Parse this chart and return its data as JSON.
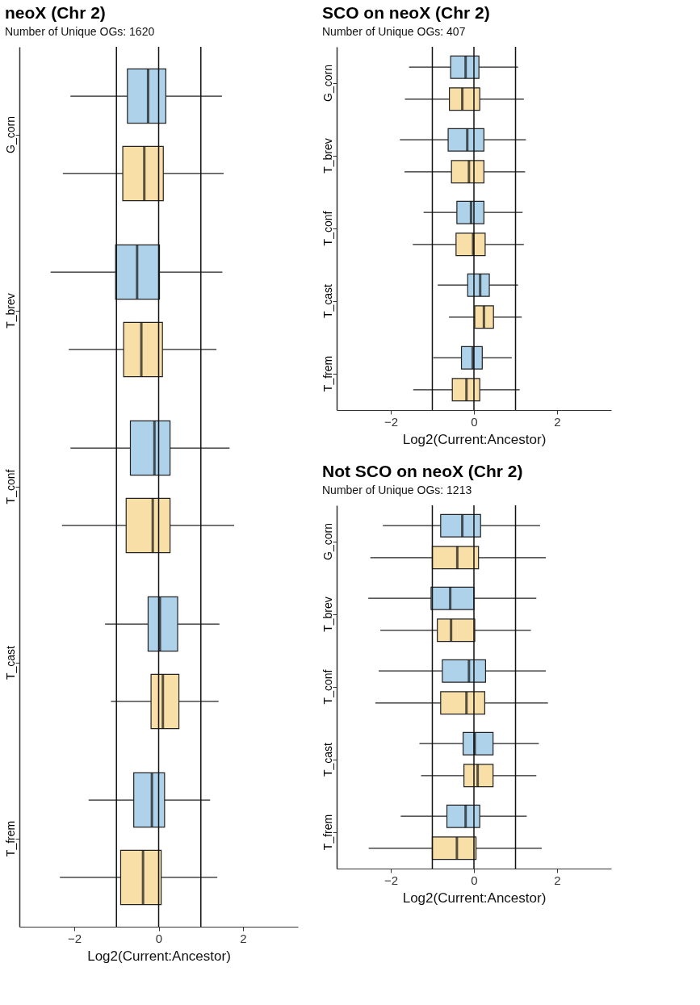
{
  "chart_data": [
    {
      "type": "box",
      "orientation": "horizontal",
      "title": "neoX (Chr 2)",
      "subtitle": "Number of Unique OGs: 1620",
      "xlabel": "Log2(Current:Ancestor)",
      "categories": [
        "G_corn",
        "T_brev",
        "T_conf",
        "T_cast",
        "T_frem"
      ],
      "xlim": [
        -3.3,
        3.3
      ],
      "xticks": [
        -2,
        0,
        2
      ],
      "ref_lines": [
        {
          "axis": "x",
          "value": -1
        },
        {
          "axis": "x",
          "value": 0
        },
        {
          "axis": "x",
          "value": 1
        }
      ],
      "series": [
        {
          "color": "#aed2ea",
          "boxes": [
            {
              "low": -2.09,
              "q1": -0.74,
              "median": -0.25,
              "q3": 0.17,
              "high": 1.5
            },
            {
              "low": -2.56,
              "q1": -1.02,
              "median": -0.51,
              "q3": 0.02,
              "high": 1.51
            },
            {
              "low": -2.09,
              "q1": -0.67,
              "median": -0.1,
              "q3": 0.27,
              "high": 1.68
            },
            {
              "low": -1.27,
              "q1": -0.25,
              "median": 0.03,
              "q3": 0.45,
              "high": 1.44
            },
            {
              "low": -1.66,
              "q1": -0.59,
              "median": -0.16,
              "q3": 0.14,
              "high": 1.22
            }
          ]
        },
        {
          "color": "#f8dfa8",
          "boxes": [
            {
              "low": -2.27,
              "q1": -0.85,
              "median": -0.34,
              "q3": 0.11,
              "high": 1.54
            },
            {
              "low": -2.13,
              "q1": -0.83,
              "median": -0.41,
              "q3": 0.09,
              "high": 1.37
            },
            {
              "low": -2.29,
              "q1": -0.77,
              "median": -0.14,
              "q3": 0.27,
              "high": 1.79
            },
            {
              "low": -1.13,
              "q1": -0.18,
              "median": 0.1,
              "q3": 0.48,
              "high": 1.42
            },
            {
              "low": -2.34,
              "q1": -0.9,
              "median": -0.37,
              "q3": 0.06,
              "high": 1.39
            }
          ]
        }
      ]
    },
    {
      "type": "box",
      "orientation": "horizontal",
      "title": "SCO on neoX (Chr 2)",
      "subtitle": "Number of Unique OGs: 407",
      "xlabel": "Log2(Current:Ancestor)",
      "categories": [
        "G_corn",
        "T_brev",
        "T_conf",
        "T_cast",
        "T_frem"
      ],
      "xlim": [
        -3.3,
        3.3
      ],
      "xticks": [
        -2,
        0,
        2
      ],
      "ref_lines": [
        {
          "axis": "x",
          "value": -1
        },
        {
          "axis": "x",
          "value": 0
        },
        {
          "axis": "x",
          "value": 1
        }
      ],
      "series": [
        {
          "color": "#aed2ea",
          "boxes": [
            {
              "low": -1.56,
              "q1": -0.56,
              "median": -0.2,
              "q3": 0.12,
              "high": 1.06
            },
            {
              "low": -1.78,
              "q1": -0.62,
              "median": -0.16,
              "q3": 0.24,
              "high": 1.25
            },
            {
              "low": -1.21,
              "q1": -0.41,
              "median": -0.07,
              "q3": 0.24,
              "high": 1.17
            },
            {
              "low": -0.87,
              "q1": -0.15,
              "median": 0.15,
              "q3": 0.37,
              "high": 1.06
            },
            {
              "low": -0.98,
              "q1": -0.3,
              "median": -0.03,
              "q3": 0.2,
              "high": 0.91
            }
          ]
        },
        {
          "color": "#f8dfa8",
          "boxes": [
            {
              "low": -1.66,
              "q1": -0.59,
              "median": -0.28,
              "q3": 0.14,
              "high": 1.2
            },
            {
              "low": -1.67,
              "q1": -0.54,
              "median": -0.12,
              "q3": 0.24,
              "high": 1.23
            },
            {
              "low": -1.47,
              "q1": -0.43,
              "median": -0.02,
              "q3": 0.27,
              "high": 1.2
            },
            {
              "low": -0.6,
              "q1": 0.02,
              "median": 0.24,
              "q3": 0.47,
              "high": 1.15
            },
            {
              "low": -1.46,
              "q1": -0.52,
              "median": -0.18,
              "q3": 0.14,
              "high": 1.1
            }
          ]
        }
      ]
    },
    {
      "type": "box",
      "orientation": "horizontal",
      "title": "Not SCO on neoX (Chr 2)",
      "subtitle": "Number of Unique OGs: 1213",
      "xlabel": "Log2(Current:Ancestor)",
      "categories": [
        "G_corn",
        "T_brev",
        "T_conf",
        "T_cast",
        "T_frem"
      ],
      "xlim": [
        -3.3,
        3.3
      ],
      "xticks": [
        -2,
        0,
        2
      ],
      "ref_lines": [
        {
          "axis": "x",
          "value": -1
        },
        {
          "axis": "x",
          "value": 0
        },
        {
          "axis": "x",
          "value": 1
        }
      ],
      "series": [
        {
          "color": "#aed2ea",
          "boxes": [
            {
              "low": -2.19,
              "q1": -0.8,
              "median": -0.28,
              "q3": 0.16,
              "high": 1.59
            },
            {
              "low": -2.54,
              "q1": -1.03,
              "median": -0.57,
              "q3": 0.0,
              "high": 1.5
            },
            {
              "low": -2.29,
              "q1": -0.76,
              "median": -0.12,
              "q3": 0.28,
              "high": 1.73
            },
            {
              "low": -1.31,
              "q1": -0.26,
              "median": 0.02,
              "q3": 0.46,
              "high": 1.56
            },
            {
              "low": -1.76,
              "q1": -0.65,
              "median": -0.2,
              "q3": 0.14,
              "high": 1.27
            }
          ]
        },
        {
          "color": "#f8dfa8",
          "boxes": [
            {
              "low": -2.49,
              "q1": -1.0,
              "median": -0.4,
              "q3": 0.11,
              "high": 1.73
            },
            {
              "low": -2.25,
              "q1": -0.88,
              "median": -0.55,
              "q3": 0.02,
              "high": 1.37
            },
            {
              "low": -2.37,
              "q1": -0.8,
              "median": -0.18,
              "q3": 0.26,
              "high": 1.78
            },
            {
              "low": -1.27,
              "q1": -0.24,
              "median": 0.09,
              "q3": 0.46,
              "high": 1.5
            },
            {
              "low": -2.53,
              "q1": -1.0,
              "median": -0.41,
              "q3": 0.05,
              "high": 1.63
            }
          ]
        }
      ]
    }
  ]
}
